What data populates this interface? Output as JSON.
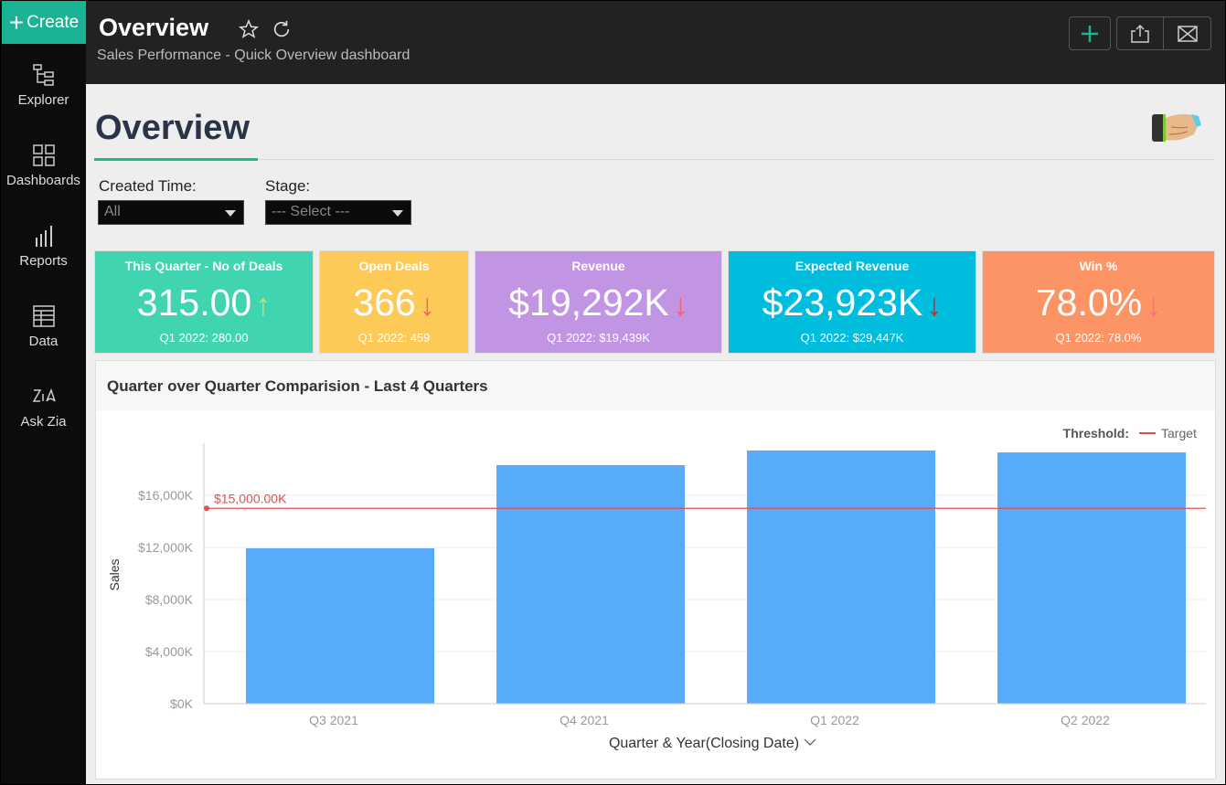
{
  "sidebar": {
    "create_label": "Create",
    "items": [
      {
        "label": "Explorer",
        "icon": "explorer-tree-icon"
      },
      {
        "label": "Dashboards",
        "icon": "dashboards-grid-icon"
      },
      {
        "label": "Reports",
        "icon": "reports-bars-icon"
      },
      {
        "label": "Data",
        "icon": "data-table-icon"
      },
      {
        "label": "Ask Zia",
        "icon": "zia-icon"
      }
    ]
  },
  "header": {
    "title": "Overview",
    "subtitle": "Sales Performance - Quick Overview dashboard"
  },
  "page": {
    "title": "Overview"
  },
  "filters": [
    {
      "label": "Created Time:",
      "value": "All"
    },
    {
      "label": "Stage:",
      "value": "--- Select ---"
    }
  ],
  "kpis": [
    {
      "title": "This Quarter - No of Deals",
      "value": "315.00",
      "arrow": "↑",
      "trend": "up",
      "compare": "Q1 2022: 280.00",
      "color": "#40d4b0",
      "arrow_color": "#b8e27a"
    },
    {
      "title": "Open Deals",
      "value": "366",
      "arrow": "↓",
      "trend": "down",
      "compare": "Q1 2022: 459",
      "color": "#fdca58",
      "arrow_color": "#f4606c"
    },
    {
      "title": "Revenue",
      "value": "$19,292K",
      "arrow": "↓",
      "trend": "down",
      "compare": "Q1 2022: $19,439K",
      "color": "#c195e3",
      "arrow_color": "#f4606c"
    },
    {
      "title": "Expected Revenue",
      "value": "$23,923K",
      "arrow": "↓",
      "trend": "down",
      "compare": "Q1 2022: $29,447K",
      "color": "#00bcdd",
      "arrow_color": "#e0202a"
    },
    {
      "title": "Win %",
      "value": "78.0%",
      "arrow": "↓",
      "trend": "down",
      "compare": "Q1 2022: 78.0%",
      "color": "#fd9466",
      "arrow_color": "#f7707a"
    }
  ],
  "chart_panel": {
    "title": "Quarter over Quarter Comparision - Last 4 Quarters"
  },
  "chart_data": {
    "type": "bar",
    "categories": [
      "Q3 2021",
      "Q4 2021",
      "Q1 2022",
      "Q2 2022"
    ],
    "values": [
      11930,
      18316,
      19439,
      19292
    ],
    "unit": "K",
    "ylabel": "Sales",
    "xlabel": "Quarter & Year(Closing Date)",
    "ylim": [
      0,
      20000
    ],
    "yticks": [
      0,
      4000,
      8000,
      12000,
      16000
    ],
    "ytick_labels": [
      "$0K",
      "$4,000K",
      "$8,000K",
      "$12,000K",
      "$16,000K"
    ],
    "grid": true,
    "bar_color": "#58aafa",
    "threshold": {
      "value": 15000,
      "label": "$15,000.00K",
      "color": "#e05050"
    },
    "legend": {
      "title": "Threshold:",
      "entry": "Target",
      "placement": "top-right"
    }
  }
}
